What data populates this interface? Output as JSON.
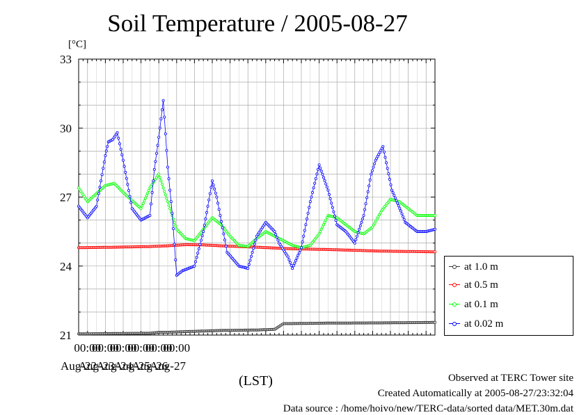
{
  "chart_data": {
    "type": "line",
    "title": "Soil Temperature / 2005-08-27",
    "ylabel": "[°C]",
    "xlabel": "(LST)",
    "ylim": [
      21,
      33
    ],
    "yticks": [
      "33",
      "30",
      "27",
      "24",
      "21"
    ],
    "xticks": [
      {
        "time": "00:00",
        "day": "Aug-22"
      },
      {
        "time": "00:00",
        "day": "Aug-23"
      },
      {
        "time": "00:00",
        "day": "Aug-24"
      },
      {
        "time": "00:00",
        "day": "Aug-25"
      },
      {
        "time": "00:00",
        "day": "Aug-26"
      },
      {
        "time": "00:00",
        "day": "Aug-27"
      }
    ],
    "x_start": "2005-08-21 12:00",
    "x_end": "2005-08-27 24:00",
    "grid": true,
    "legend_position": "right",
    "series": [
      {
        "name": "at 1.0 m",
        "color": "#333333",
        "x": [
          0,
          60,
          96,
          108,
          120,
          144,
          192,
          240,
          264,
          276,
          288,
          336,
          408,
          480
        ],
        "y": [
          21.05,
          21.07,
          21.08,
          21.12,
          21.12,
          21.15,
          21.2,
          21.22,
          21.25,
          21.5,
          21.5,
          21.52,
          21.53,
          21.55
        ]
      },
      {
        "name": "at 0.5 m",
        "color": "#ff0000",
        "x": [
          0,
          48,
          96,
          120,
          144,
          168,
          192,
          240,
          288,
          336,
          408,
          480
        ],
        "y": [
          24.8,
          24.82,
          24.85,
          24.88,
          24.93,
          24.92,
          24.88,
          24.82,
          24.75,
          24.72,
          24.65,
          24.62
        ]
      },
      {
        "name": "at 0.1 m",
        "color": "#00ff00",
        "x": [
          0,
          12,
          36,
          48,
          60,
          84,
          96,
          108,
          120,
          132,
          144,
          156,
          168,
          180,
          192,
          204,
          216,
          228,
          240,
          252,
          264,
          276,
          288,
          300,
          312,
          324,
          336,
          348,
          360,
          372,
          384,
          396,
          408,
          420,
          432,
          444,
          456,
          468,
          480
        ],
        "y": [
          27.4,
          26.8,
          27.5,
          27.6,
          27.2,
          26.5,
          27.4,
          28.0,
          26.8,
          25.6,
          25.2,
          25.1,
          25.6,
          26.1,
          25.8,
          25.3,
          24.9,
          24.85,
          25.2,
          25.5,
          25.3,
          25.1,
          24.9,
          24.8,
          24.9,
          25.4,
          26.2,
          26.1,
          25.8,
          25.5,
          25.4,
          25.7,
          26.4,
          26.9,
          26.8,
          26.5,
          26.2,
          26.2,
          26.2
        ]
      },
      {
        "name": "at 0.02 m",
        "color": "#0000ff",
        "x": [
          0,
          12,
          24,
          36,
          40,
          46,
          52,
          60,
          72,
          84,
          96,
          102,
          108,
          114,
          120,
          126,
          132,
          140,
          156,
          168,
          180,
          186,
          200,
          216,
          228,
          240,
          252,
          264,
          270,
          276,
          282,
          288,
          300,
          312,
          324,
          336,
          348,
          360,
          372,
          384,
          394,
          400,
          410,
          422,
          434,
          440,
          456,
          468,
          480
        ],
        "y": [
          26.6,
          26.1,
          26.6,
          28.8,
          29.4,
          29.5,
          29.8,
          28.6,
          26.5,
          26.0,
          26.2,
          28.2,
          29.6,
          31.2,
          28.3,
          26.3,
          23.6,
          23.8,
          24.0,
          25.5,
          27.7,
          27.0,
          24.6,
          24.0,
          23.9,
          25.3,
          25.9,
          25.5,
          25.0,
          24.7,
          24.4,
          23.9,
          24.8,
          26.8,
          28.4,
          27.3,
          25.8,
          25.5,
          25.0,
          26.2,
          28.0,
          28.6,
          29.2,
          27.3,
          26.4,
          25.9,
          25.5,
          25.5,
          25.6
        ]
      }
    ]
  },
  "footer": {
    "line1": "Observed at TERC Tower site",
    "line2": "Created Automatically at 2005-08-27/23:32:04",
    "line3": "Data source : /home/hoivo/new/TERC-data/sorted  data/MET.30m.dat"
  }
}
